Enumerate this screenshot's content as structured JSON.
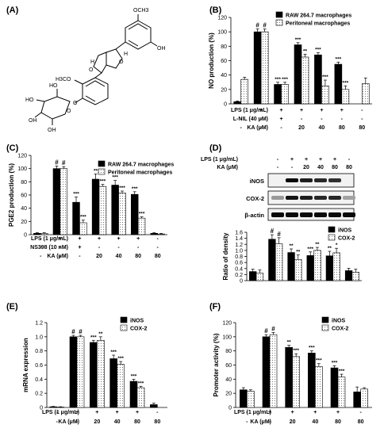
{
  "panels": {
    "A": {
      "label": "(A)"
    },
    "B": {
      "label": "(B)"
    },
    "C": {
      "label": "(C)"
    },
    "D": {
      "label": "(D)"
    },
    "E": {
      "label": "(E)"
    },
    "F": {
      "label": "(F)"
    }
  },
  "structure": {
    "labels": [
      "OCH3",
      "OH",
      "H",
      "H",
      "H3CO",
      "HO",
      "HO",
      "OH",
      "OH",
      "O",
      "O",
      "O",
      "O"
    ]
  },
  "blot": {
    "header_lps": "LPS (1 μg/mL)",
    "header_ka": "KA (μM)",
    "lps_row": [
      "-",
      "+",
      "+",
      "+",
      "+",
      "-"
    ],
    "ka_row": [
      "-",
      "-",
      "20",
      "40",
      "80",
      "80"
    ],
    "bands": [
      "iNOS",
      "COX-2",
      "β-actin"
    ],
    "intensity": {
      "iNOS": [
        0.0,
        1.0,
        0.9,
        0.85,
        0.8,
        0.0
      ],
      "COX-2": [
        0.25,
        0.95,
        0.9,
        0.85,
        0.85,
        0.2
      ],
      "β-actin": [
        1,
        1,
        1,
        1,
        1,
        1
      ]
    }
  },
  "chart_data": [
    {
      "panel": "B",
      "type": "bar",
      "ylabel": "NO production (%)",
      "ylim": [
        0,
        120
      ],
      "yticks": [
        0,
        20,
        40,
        60,
        80,
        100,
        120
      ],
      "legend_position": "top-right",
      "series": [
        {
          "name": "RAW 264.7 macrophages",
          "values": [
            3,
            100,
            27,
            82,
            68,
            55,
            0
          ],
          "errors": [
            1,
            4,
            3,
            3,
            3,
            3,
            0
          ],
          "annot": [
            "",
            "#",
            "***",
            "***",
            "***",
            "***",
            ""
          ]
        },
        {
          "name": "Peritoneal macrophages",
          "values": [
            34,
            100,
            27,
            65,
            25,
            20,
            28
          ],
          "errors": [
            3,
            4,
            3,
            4,
            8,
            5,
            8
          ],
          "annot": [
            "",
            "#",
            "***",
            "**",
            "***",
            "***",
            ""
          ]
        }
      ],
      "conditions": [
        {
          "label": "LPS (1 μg/mL)",
          "values": [
            "-",
            "+",
            "+",
            "+",
            "+",
            "+",
            "-"
          ]
        },
        {
          "label": "L-NIL (40 μM)",
          "values": [
            "-",
            "-",
            "+",
            "-",
            "-",
            "-",
            "-"
          ]
        },
        {
          "label": "KA (μM)",
          "values": [
            "-",
            "-",
            "-",
            "20",
            "40",
            "80",
            "80"
          ]
        }
      ]
    },
    {
      "panel": "C",
      "type": "bar",
      "ylabel": "PGE2 production (%)",
      "ylim": [
        0,
        120
      ],
      "yticks": [
        0,
        20,
        40,
        60,
        80,
        100,
        120
      ],
      "legend_position": "top-right",
      "series": [
        {
          "name": "RAW 264.7 macrophages",
          "values": [
            2,
            100,
            49,
            84,
            75,
            61,
            2
          ],
          "errors": [
            1,
            4,
            8,
            8,
            7,
            4,
            1
          ],
          "annot": [
            "",
            "#",
            "***",
            "**",
            "***",
            "***",
            ""
          ]
        },
        {
          "name": "Peritoneal macrophages",
          "values": [
            2,
            100,
            18,
            73,
            63,
            25,
            1
          ],
          "errors": [
            1,
            3,
            4,
            3,
            3,
            2,
            1
          ],
          "annot": [
            "",
            "#",
            "***",
            "***",
            "***",
            "***",
            ""
          ]
        }
      ],
      "conditions": [
        {
          "label": "LPS (1 μg/mL)",
          "values": [
            "-",
            "+",
            "+",
            "+",
            "+",
            "+",
            "-"
          ]
        },
        {
          "label": "NS398 (10 nM)",
          "values": [
            "-",
            "-",
            "+",
            "-",
            "-",
            "-",
            "-"
          ]
        },
        {
          "label": "KA (μM)",
          "values": [
            "-",
            "-",
            "-",
            "20",
            "40",
            "80",
            "80"
          ]
        }
      ]
    },
    {
      "panel": "D",
      "type": "bar",
      "ylabel": "Ratio of density",
      "ylim": [
        0,
        1.6
      ],
      "yticks": [
        0,
        0.2,
        0.4,
        0.6,
        0.8,
        1.0,
        1.2,
        1.4,
        1.6
      ],
      "legend_position": "top-right",
      "series": [
        {
          "name": "iNOS",
          "values": [
            0.3,
            1.37,
            0.93,
            0.83,
            0.82,
            0.33
          ],
          "errors": [
            0.08,
            0.15,
            0.12,
            0.12,
            0.15,
            0.08
          ],
          "annot": [
            "",
            "#",
            "**",
            "***",
            "**",
            ""
          ]
        },
        {
          "name": "COX-2",
          "values": [
            0.25,
            1.22,
            0.7,
            1.0,
            0.92,
            0.28
          ],
          "errors": [
            0.1,
            0.2,
            0.15,
            0.1,
            0.15,
            0.1
          ],
          "annot": [
            "",
            "#",
            "**",
            "**",
            "*",
            ""
          ]
        }
      ]
    },
    {
      "panel": "E",
      "type": "bar",
      "ylabel": "mRNA expression",
      "ylim": [
        0,
        1.2
      ],
      "yticks": [
        0,
        0.2,
        0.4,
        0.6,
        0.8,
        1.0,
        1.2
      ],
      "legend_position": "top-right",
      "series": [
        {
          "name": "iNOS",
          "values": [
            0.01,
            1.0,
            0.92,
            0.69,
            0.37,
            0.04
          ],
          "errors": [
            0.005,
            0.02,
            0.03,
            0.05,
            0.03,
            0.02
          ],
          "annot": [
            "",
            "#",
            "***",
            "***",
            "***",
            ""
          ]
        },
        {
          "name": "COX-2",
          "values": [
            0.005,
            1.0,
            0.95,
            0.61,
            0.28,
            0.0
          ],
          "errors": [
            0.005,
            0.02,
            0.05,
            0.04,
            0.02,
            0.0
          ],
          "annot": [
            "",
            "#",
            "**",
            "***",
            "***",
            ""
          ]
        }
      ],
      "conditions": [
        {
          "label": "LPS (1 μg/mL)",
          "values": [
            "-",
            "+",
            "+",
            "+",
            "+",
            "-"
          ]
        },
        {
          "label": "KA (μM)",
          "values": [
            "-",
            "-",
            "20",
            "40",
            "80",
            "80"
          ]
        }
      ]
    },
    {
      "panel": "F",
      "type": "bar",
      "ylabel": "Promoter activity (%)",
      "ylim": [
        0,
        120
      ],
      "yticks": [
        0,
        20,
        40,
        60,
        80,
        100,
        120
      ],
      "legend_position": "top-right",
      "series": [
        {
          "name": "iNOS",
          "values": [
            25,
            100,
            85,
            77,
            56,
            22
          ],
          "errors": [
            3,
            3,
            3,
            3,
            3,
            7
          ],
          "annot": [
            "",
            "#",
            "**",
            "***",
            "***",
            ""
          ]
        },
        {
          "name": "COX-2",
          "values": [
            23,
            103,
            72,
            58,
            43,
            26
          ],
          "errors": [
            2,
            3,
            4,
            4,
            4,
            2
          ],
          "annot": [
            "",
            "#",
            "***",
            "***",
            "***",
            ""
          ]
        }
      ],
      "conditions": [
        {
          "label": "LPS (1 μg/mL)",
          "values": [
            "-",
            "+",
            "+",
            "+",
            "+",
            "-"
          ]
        },
        {
          "label": "KA (μM)",
          "values": [
            "-",
            "-",
            "20",
            "40",
            "80",
            "80"
          ]
        }
      ]
    }
  ]
}
